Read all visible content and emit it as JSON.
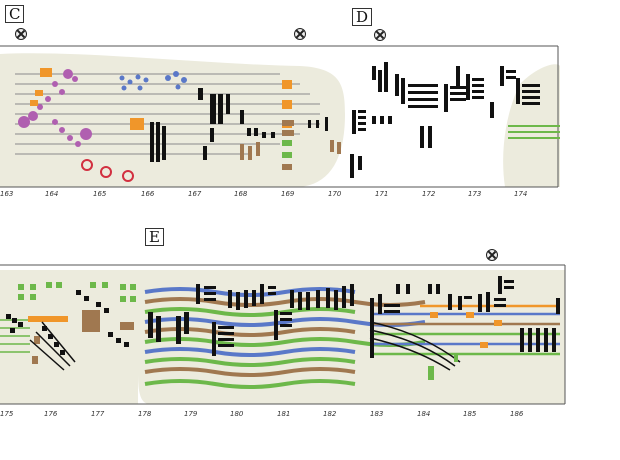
{
  "section_labels": {
    "c": "C",
    "d": "D",
    "e": "E"
  },
  "system1_ticks": [
    "163",
    "164",
    "165",
    "166",
    "167",
    "168",
    "169",
    "170",
    "171",
    "172",
    "173",
    "174"
  ],
  "system2_ticks": [
    "175",
    "176",
    "177",
    "178",
    "179",
    "180",
    "181",
    "182",
    "183",
    "184",
    "185",
    "186"
  ],
  "colors": {
    "background_shape": "#ecebdd",
    "staff_line": "#777777",
    "violet": "#b05fb0",
    "blue": "#5a78c8",
    "orange": "#f0962a",
    "red": "#d23040",
    "green": "#6db84a",
    "brown": "#a07850",
    "black": "#111111"
  },
  "icons": {
    "marker": "x-circle-marker-icon"
  }
}
